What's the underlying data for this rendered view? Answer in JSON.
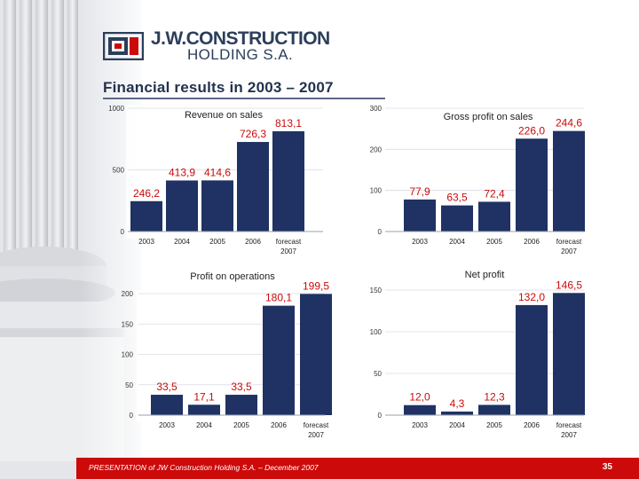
{
  "header": {
    "company_line1": "J.W.CONSTRUCTION",
    "company_line2": "HOLDING S.A.",
    "title": "Financial results in 2003 – 2007"
  },
  "footer": {
    "text": "PRESENTATION of JW Construction Holding S.A. – December 2007",
    "page": "35"
  },
  "colors": {
    "bar": "#1f3263",
    "footer": "#cc0a0a",
    "title": "#24324d"
  },
  "chart_data": [
    {
      "type": "bar",
      "title": "Revenue on sales",
      "categories": [
        "2003",
        "2004",
        "2005",
        "2006",
        "forecast 2007"
      ],
      "values": [
        246.2,
        413.9,
        414.6,
        726.3,
        813.1
      ],
      "labels": [
        "246,2",
        "413,9",
        "414,6",
        "726,3",
        "813,1"
      ],
      "ylim": [
        0,
        1000
      ],
      "yticks": [
        0,
        500,
        1000
      ],
      "grid": true
    },
    {
      "type": "bar",
      "title": "Gross profit on sales",
      "categories": [
        "2003",
        "2004",
        "2005",
        "2006",
        "forecast 2007"
      ],
      "values": [
        77.9,
        63.5,
        72.4,
        226.0,
        244.6
      ],
      "labels": [
        "77,9",
        "63,5",
        "72,4",
        "226,0",
        "244,6"
      ],
      "ylim": [
        0,
        300
      ],
      "yticks": [
        0,
        100,
        200,
        300
      ],
      "grid": true
    },
    {
      "type": "bar",
      "title": "Profit on operations",
      "categories": [
        "2003",
        "2004",
        "2005",
        "2006",
        "forecast 2007"
      ],
      "values": [
        33.5,
        17.1,
        33.5,
        180.1,
        199.5
      ],
      "labels": [
        "33,5",
        "17,1",
        "33,5",
        "180,1",
        "199,5"
      ],
      "ylim": [
        0,
        200
      ],
      "yticks": [
        0,
        50,
        100,
        150,
        200
      ],
      "grid": true
    },
    {
      "type": "bar",
      "title": "Net profit",
      "categories": [
        "2003",
        "2004",
        "2005",
        "2006",
        "forecast 2007"
      ],
      "values": [
        12.0,
        4.3,
        12.3,
        132.0,
        146.5
      ],
      "labels": [
        "12,0",
        "4,3",
        "12,3",
        "132,0",
        "146,5"
      ],
      "ylim": [
        0,
        150
      ],
      "yticks": [
        0,
        50,
        100,
        150
      ],
      "grid": true
    }
  ]
}
